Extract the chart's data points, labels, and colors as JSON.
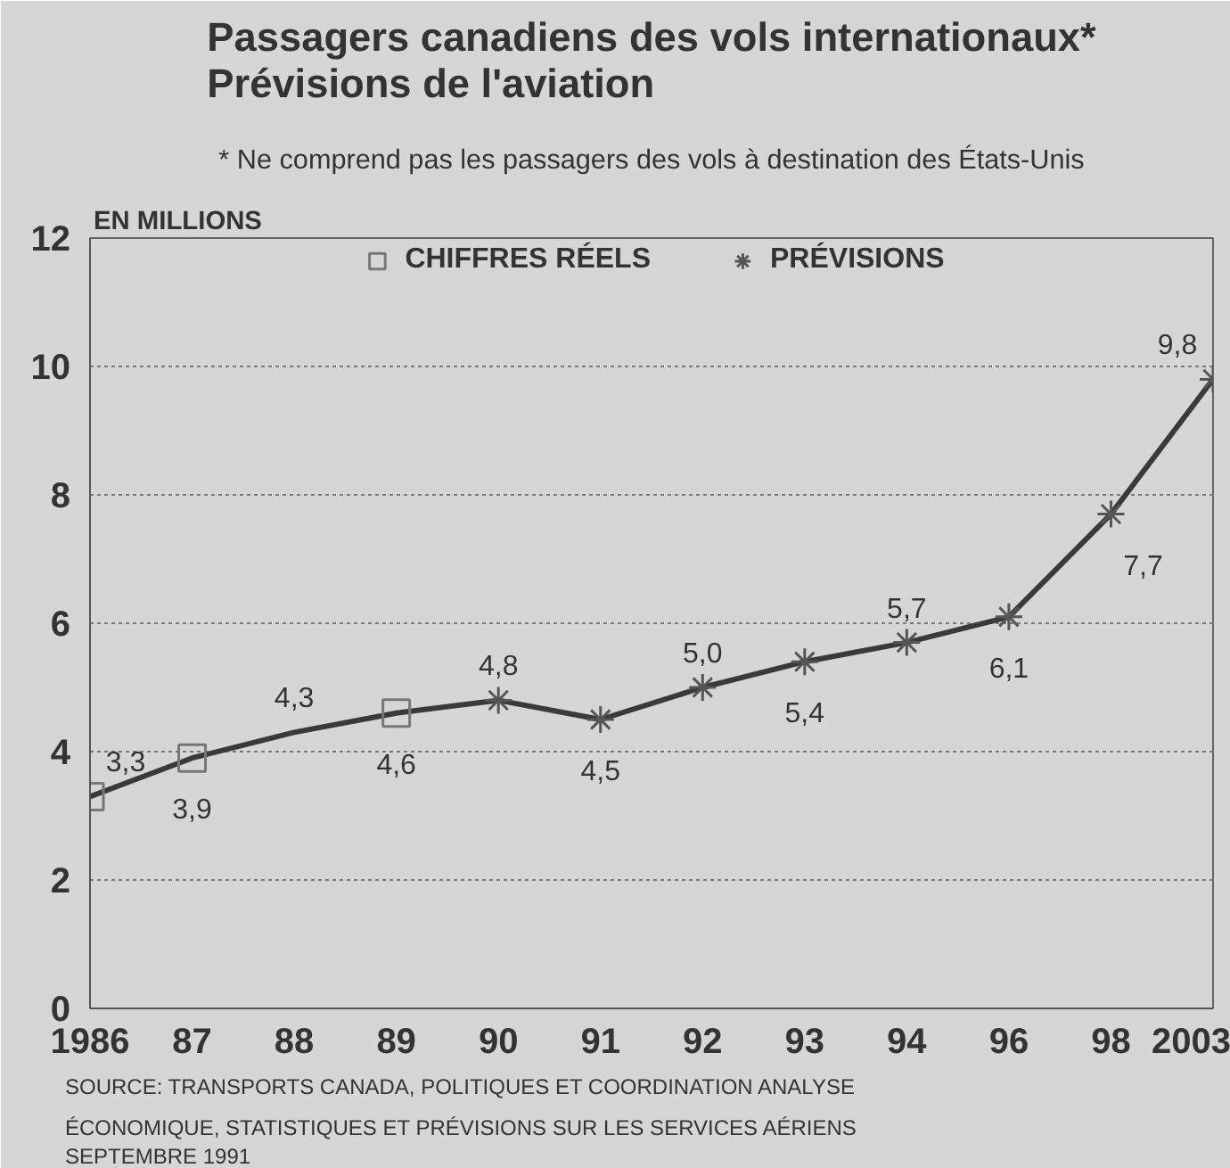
{
  "chart_data": {
    "type": "line",
    "title": "Passagers canadiens des vols internationaux*\nPrévisions de l'aviation",
    "subtitle": "* Ne comprend pas les passagers des vols à destination des États-Unis",
    "ylabel": "EN MILLIONS",
    "categories": [
      "1986",
      "87",
      "88",
      "89",
      "90",
      "91",
      "92",
      "93",
      "94",
      "96",
      "98",
      "2003"
    ],
    "series": [
      {
        "color": "#3a3a3a",
        "marker": "none",
        "values": [
          3.3,
          3.9,
          4.3,
          4.6,
          4.8,
          4.5,
          5.0,
          5.4,
          5.7,
          6.1,
          7.7,
          9.8
        ],
        "value_labels": [
          "3,3",
          "3,9",
          "4,3",
          "4,6",
          "4,8",
          "4,5",
          "5,0",
          "5,4",
          "5,7",
          "6,1",
          "7,7",
          "9,8"
        ]
      },
      {
        "type": "scatter",
        "name": "CHIFFRES RÉELS",
        "color": "#777777",
        "marker": "square",
        "values": [
          3.3,
          3.9,
          null,
          4.6,
          null,
          null,
          null,
          null,
          null,
          null,
          null,
          null
        ]
      },
      {
        "type": "scatter",
        "name": "PRÉVISIONS",
        "color": "#555555",
        "marker": "cross",
        "values": [
          null,
          null,
          null,
          null,
          4.8,
          4.5,
          5.0,
          5.4,
          5.7,
          6.1,
          7.7,
          9.8
        ]
      }
    ],
    "ylim": [
      0,
      12
    ],
    "yticks": [
      0,
      2,
      4,
      6,
      8,
      10,
      12
    ],
    "grid": "y",
    "legend": "top",
    "annotations": [
      "SOURCE:  TRANSPORTS CANADA, POLITIQUES ET COORDINATION ANALYSE\n               ÉCONOMIQUE, STATISTIQUES ET PRÉVISIONS SUR LES SERVICES AÉRIENS\n               SEPTEMBRE 1991"
    ]
  }
}
